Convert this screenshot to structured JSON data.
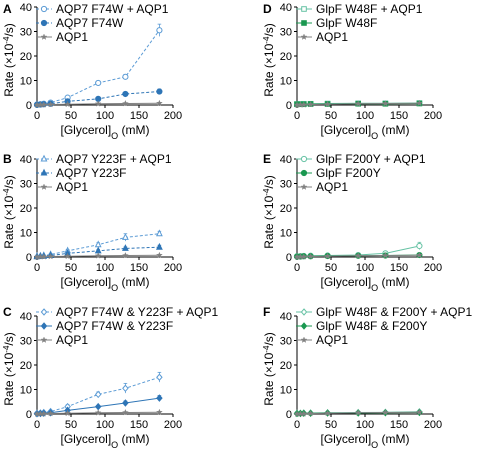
{
  "chart_data": [
    {
      "type": "line",
      "panel": "A",
      "xlabel": "[Glycerol]",
      "xlabel_sub": "O",
      "xlabel_unit": " (mM)",
      "ylabel": "Rate (×10",
      "ylabel_sup": "-4",
      "ylabel_unit": "/s)",
      "xlim": [
        0,
        200
      ],
      "ylim": [
        0,
        40
      ],
      "xticks": [
        0,
        50,
        100,
        150,
        200
      ],
      "yticks": [
        0,
        10,
        20,
        30,
        40
      ],
      "x": [
        0,
        5,
        10,
        20,
        45,
        90,
        130,
        180
      ],
      "series": [
        {
          "name": "AQP7 F74W + AQP1",
          "marker": "circle-open",
          "line": "dashed",
          "color": "#5b9bd5",
          "values": [
            0.2,
            0.3,
            0.5,
            1.0,
            3.0,
            9.0,
            11.5,
            30.5
          ],
          "errors": [
            0.2,
            0.2,
            0.3,
            0.4,
            0.6,
            0.8,
            1.0,
            2.5
          ]
        },
        {
          "name": "AQP7 F74W",
          "marker": "circle-filled",
          "line": "dashed",
          "color": "#2e75b6",
          "values": [
            0.1,
            0.2,
            0.3,
            0.5,
            1.5,
            2.5,
            4.5,
            5.5
          ],
          "errors": [
            0.1,
            0.1,
            0.2,
            0.3,
            0.4,
            0.5,
            0.8,
            1.0
          ]
        },
        {
          "name": "AQP1",
          "marker": "star",
          "line": "solid",
          "color": "#808080",
          "values": [
            0.0,
            0.1,
            0.1,
            0.2,
            0.3,
            0.5,
            0.6,
            0.7
          ],
          "errors": [
            0.1,
            0.1,
            0.1,
            0.1,
            0.2,
            0.2,
            0.2,
            0.3
          ]
        }
      ]
    },
    {
      "type": "line",
      "panel": "B",
      "xlabel": "[Glycerol]",
      "xlabel_sub": "O",
      "xlabel_unit": " (mM)",
      "ylabel": "Rate (×10",
      "ylabel_sup": "-4",
      "ylabel_unit": "/s)",
      "xlim": [
        0,
        200
      ],
      "ylim": [
        0,
        40
      ],
      "xticks": [
        0,
        50,
        100,
        150,
        200
      ],
      "yticks": [
        0,
        10,
        20,
        30,
        40
      ],
      "x": [
        0,
        5,
        10,
        20,
        45,
        90,
        130,
        180
      ],
      "series": [
        {
          "name": "AQP7 Y223F + AQP1",
          "marker": "triangle-open",
          "line": "dashed",
          "color": "#5b9bd5",
          "values": [
            0.3,
            0.4,
            0.6,
            1.0,
            2.5,
            5.0,
            8.0,
            9.5
          ],
          "errors": [
            0.2,
            0.2,
            0.3,
            0.4,
            0.6,
            0.8,
            1.5,
            1.0
          ]
        },
        {
          "name": "AQP7 Y223F",
          "marker": "triangle-filled",
          "line": "dashed",
          "color": "#2e75b6",
          "values": [
            0.1,
            0.2,
            0.3,
            0.6,
            1.5,
            2.5,
            3.5,
            4.0
          ],
          "errors": [
            0.1,
            0.1,
            0.2,
            0.3,
            0.4,
            0.5,
            0.6,
            0.8
          ]
        },
        {
          "name": "AQP1",
          "marker": "star",
          "line": "solid",
          "color": "#808080",
          "values": [
            0.0,
            0.1,
            0.1,
            0.2,
            0.3,
            0.5,
            0.6,
            0.7
          ],
          "errors": [
            0.1,
            0.1,
            0.1,
            0.1,
            0.2,
            0.2,
            0.2,
            0.3
          ]
        }
      ]
    },
    {
      "type": "line",
      "panel": "C",
      "xlabel": "[Glycerol]",
      "xlabel_sub": "O",
      "xlabel_unit": " (mM)",
      "ylabel": "Rate (×10",
      "ylabel_sup": "-4",
      "ylabel_unit": "/s)",
      "xlim": [
        0,
        200
      ],
      "ylim": [
        0,
        40
      ],
      "xticks": [
        0,
        50,
        100,
        150,
        200
      ],
      "yticks": [
        0,
        10,
        20,
        30,
        40
      ],
      "x": [
        0,
        5,
        10,
        20,
        45,
        90,
        130,
        180
      ],
      "series": [
        {
          "name": "AQP7 F74W & Y223F + AQP1",
          "marker": "diamond-open",
          "line": "dashed",
          "color": "#5b9bd5",
          "values": [
            0.3,
            0.4,
            0.6,
            1.0,
            3.0,
            8.0,
            10.5,
            15.0
          ],
          "errors": [
            0.2,
            0.2,
            0.3,
            0.4,
            0.8,
            1.0,
            2.0,
            2.0
          ]
        },
        {
          "name": "AQP7 F74W & Y223F",
          "marker": "diamond-filled",
          "line": "solid",
          "color": "#2e75b6",
          "values": [
            0.1,
            0.2,
            0.3,
            0.5,
            1.5,
            3.0,
            4.5,
            6.5
          ],
          "errors": [
            0.1,
            0.1,
            0.2,
            0.3,
            0.4,
            0.5,
            0.8,
            1.0
          ]
        },
        {
          "name": "AQP1",
          "marker": "star",
          "line": "solid",
          "color": "#808080",
          "values": [
            0.0,
            0.1,
            0.1,
            0.2,
            0.3,
            0.5,
            0.6,
            0.7
          ],
          "errors": [
            0.1,
            0.1,
            0.1,
            0.1,
            0.2,
            0.2,
            0.2,
            0.3
          ]
        }
      ]
    },
    {
      "type": "line",
      "panel": "D",
      "xlabel": "[Glycerol]",
      "xlabel_sub": "O",
      "xlabel_unit": " (mM)",
      "ylabel": "Rate (×10",
      "ylabel_sup": "-4",
      "ylabel_unit": "/s)",
      "xlim": [
        0,
        200
      ],
      "ylim": [
        0,
        40
      ],
      "xticks": [
        0,
        50,
        100,
        150,
        200
      ],
      "yticks": [
        0,
        10,
        20,
        30,
        40
      ],
      "x": [
        0,
        5,
        10,
        20,
        45,
        90,
        130,
        180
      ],
      "series": [
        {
          "name": "GlpF W48F + AQP1",
          "marker": "square-open",
          "line": "solid",
          "color": "#66c2a4",
          "values": [
            0.4,
            0.4,
            0.5,
            0.5,
            0.6,
            0.7,
            0.7,
            0.8
          ],
          "errors": [
            0.3,
            0.3,
            0.3,
            0.3,
            0.4,
            0.4,
            0.5,
            0.6
          ]
        },
        {
          "name": "GlpF W48F",
          "marker": "square-filled",
          "line": "solid",
          "color": "#1a9850",
          "values": [
            0.3,
            0.3,
            0.3,
            0.4,
            0.4,
            0.5,
            0.5,
            0.6
          ],
          "errors": [
            0.2,
            0.2,
            0.2,
            0.3,
            0.3,
            0.3,
            0.4,
            0.4
          ]
        },
        {
          "name": "AQP1",
          "marker": "star",
          "line": "solid",
          "color": "#808080",
          "values": [
            0.0,
            0.1,
            0.1,
            0.2,
            0.3,
            0.5,
            0.6,
            0.7
          ],
          "errors": [
            0.1,
            0.1,
            0.1,
            0.1,
            0.2,
            0.2,
            0.2,
            0.3
          ]
        }
      ]
    },
    {
      "type": "line",
      "panel": "E",
      "xlabel": "[Glycerol]",
      "xlabel_sub": "O",
      "xlabel_unit": " (mM)",
      "ylabel": "Rate (×10",
      "ylabel_sup": "-4",
      "ylabel_unit": "/s)",
      "xlim": [
        0,
        200
      ],
      "ylim": [
        0,
        40
      ],
      "xticks": [
        0,
        50,
        100,
        150,
        200
      ],
      "yticks": [
        0,
        10,
        20,
        30,
        40
      ],
      "x": [
        0,
        5,
        10,
        20,
        45,
        90,
        130,
        180
      ],
      "series": [
        {
          "name": "GlpF F200Y + AQP1",
          "marker": "circle-open",
          "line": "solid",
          "color": "#66c2a4",
          "values": [
            0.3,
            0.3,
            0.4,
            0.5,
            0.6,
            0.8,
            1.5,
            4.5
          ],
          "errors": [
            0.2,
            0.2,
            0.3,
            0.3,
            0.4,
            0.5,
            0.8,
            1.5
          ]
        },
        {
          "name": "GlpF F200Y",
          "marker": "circle-filled",
          "line": "solid",
          "color": "#1a9850",
          "values": [
            0.2,
            0.2,
            0.3,
            0.3,
            0.4,
            0.5,
            0.6,
            0.8
          ],
          "errors": [
            0.1,
            0.1,
            0.2,
            0.2,
            0.2,
            0.3,
            0.3,
            0.4
          ]
        },
        {
          "name": "AQP1",
          "marker": "star",
          "line": "solid",
          "color": "#808080",
          "values": [
            0.0,
            0.1,
            0.1,
            0.2,
            0.3,
            0.5,
            0.6,
            0.7
          ],
          "errors": [
            0.1,
            0.1,
            0.1,
            0.1,
            0.2,
            0.2,
            0.2,
            0.3
          ]
        }
      ]
    },
    {
      "type": "line",
      "panel": "F",
      "xlabel": "[Glycerol]",
      "xlabel_sub": "O",
      "xlabel_unit": " (mM)",
      "ylabel": "Rate (×10",
      "ylabel_sup": "-4",
      "ylabel_unit": "/s)",
      "xlim": [
        0,
        200
      ],
      "ylim": [
        0,
        40
      ],
      "xticks": [
        0,
        50,
        100,
        150,
        200
      ],
      "yticks": [
        0,
        10,
        20,
        30,
        40
      ],
      "x": [
        0,
        5,
        10,
        20,
        45,
        90,
        130,
        180
      ],
      "series": [
        {
          "name": "GlpF W48F & F200Y + AQP1",
          "marker": "diamond-open",
          "line": "solid",
          "color": "#66c2a4",
          "values": [
            0.3,
            0.3,
            0.4,
            0.4,
            0.5,
            0.6,
            0.7,
            0.9
          ],
          "errors": [
            0.2,
            0.2,
            0.2,
            0.3,
            0.3,
            0.3,
            0.4,
            0.4
          ]
        },
        {
          "name": "GlpF W48F & F200Y",
          "marker": "diamond-filled",
          "line": "solid",
          "color": "#1a9850",
          "values": [
            0.2,
            0.2,
            0.3,
            0.3,
            0.4,
            0.4,
            0.5,
            0.6
          ],
          "errors": [
            0.1,
            0.1,
            0.2,
            0.2,
            0.2,
            0.3,
            0.3,
            0.3
          ]
        },
        {
          "name": "AQP1",
          "marker": "star",
          "line": "solid",
          "color": "#808080",
          "values": [
            0.0,
            0.1,
            0.1,
            0.2,
            0.3,
            0.5,
            0.6,
            0.7
          ],
          "errors": [
            0.1,
            0.1,
            0.1,
            0.1,
            0.2,
            0.2,
            0.2,
            0.3
          ]
        }
      ]
    }
  ]
}
